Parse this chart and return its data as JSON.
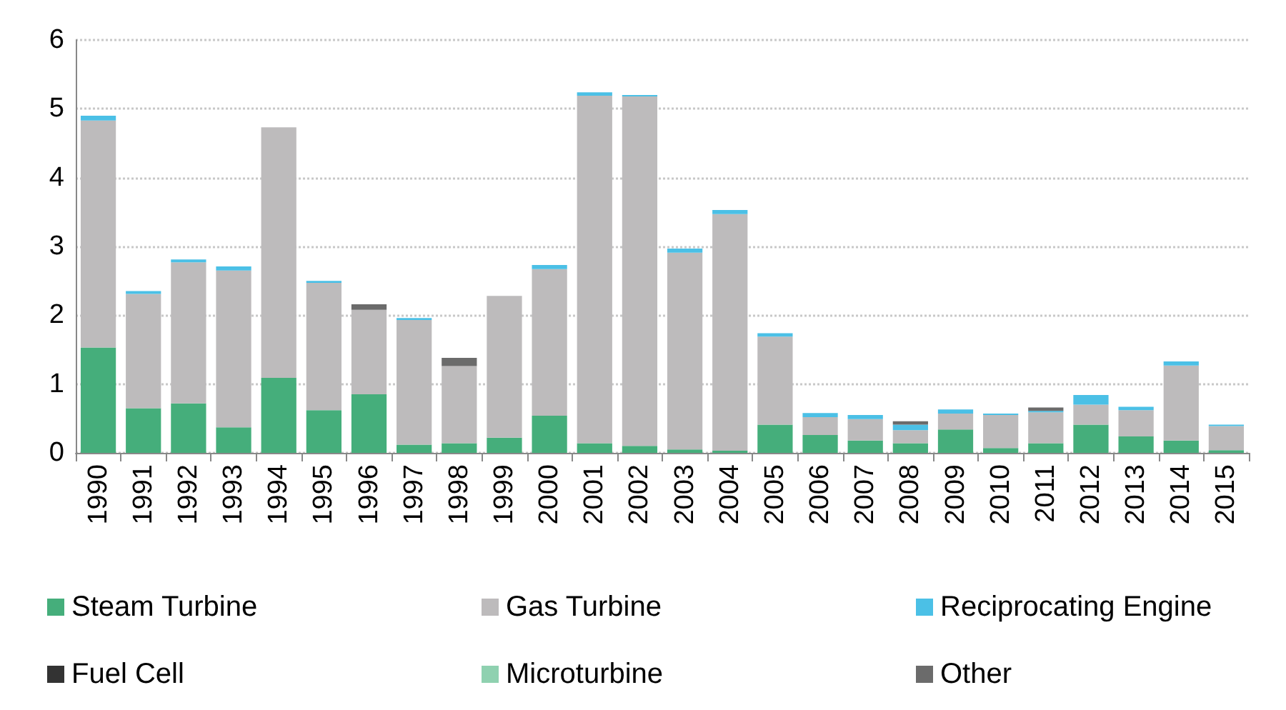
{
  "chart_data": {
    "type": "bar",
    "stacked": true,
    "categories": [
      "1990",
      "1991",
      "1992",
      "1993",
      "1994",
      "1995",
      "1996",
      "1997",
      "1998",
      "1999",
      "2000",
      "2001",
      "2002",
      "2003",
      "2004",
      "2005",
      "2006",
      "2007",
      "2008",
      "2009",
      "2010",
      "2011",
      "2012",
      "2013",
      "2014",
      "2015"
    ],
    "series": [
      {
        "name": "Steam Turbine",
        "color": "#45ae7b",
        "values": [
          1.53,
          0.65,
          0.72,
          0.37,
          1.09,
          0.62,
          0.85,
          0.12,
          0.14,
          0.22,
          0.54,
          0.14,
          0.1,
          0.05,
          0.03,
          0.41,
          0.26,
          0.18,
          0.14,
          0.34,
          0.07,
          0.14,
          0.41,
          0.24,
          0.18,
          0.04
        ]
      },
      {
        "name": "Gas Turbine",
        "color": "#bdbbbc",
        "values": [
          3.3,
          1.66,
          2.05,
          2.28,
          3.64,
          1.85,
          1.23,
          1.81,
          1.12,
          2.06,
          2.13,
          5.05,
          5.08,
          2.86,
          3.44,
          1.28,
          0.26,
          0.31,
          0.19,
          0.23,
          0.48,
          0.45,
          0.29,
          0.38,
          1.09,
          0.35
        ]
      },
      {
        "name": "Reciprocating Engine",
        "color": "#4bc0e6",
        "values": [
          0.07,
          0.04,
          0.04,
          0.06,
          0,
          0.03,
          0,
          0.03,
          0,
          0,
          0.06,
          0.05,
          0.02,
          0.06,
          0.06,
          0.05,
          0.06,
          0.06,
          0.08,
          0.06,
          0.02,
          0.02,
          0.14,
          0.05,
          0.06,
          0.02
        ]
      },
      {
        "name": "Fuel Cell",
        "color": "#333333",
        "values": [
          0,
          0,
          0,
          0,
          0,
          0,
          0,
          0,
          0,
          0,
          0,
          0,
          0,
          0,
          0,
          0,
          0,
          0,
          0,
          0,
          0,
          0,
          0,
          0,
          0,
          0
        ]
      },
      {
        "name": "Microturbine",
        "color": "#8fd1b0",
        "values": [
          0,
          0,
          0,
          0,
          0,
          0,
          0,
          0,
          0,
          0,
          0,
          0,
          0,
          0,
          0,
          0,
          0,
          0,
          0,
          0,
          0,
          0,
          0,
          0,
          0,
          0
        ]
      },
      {
        "name": "Other",
        "color": "#6b6b6b",
        "values": [
          0,
          0,
          0,
          0,
          0,
          0,
          0.08,
          0,
          0.12,
          0,
          0,
          0,
          0,
          0,
          0,
          0,
          0,
          0,
          0.05,
          0,
          0,
          0.05,
          0,
          0,
          0,
          0
        ]
      }
    ],
    "ylim": [
      0,
      6
    ],
    "yticks": [
      0,
      1,
      2,
      3,
      4,
      5,
      6
    ],
    "grid": "y",
    "legend": "bottom"
  }
}
